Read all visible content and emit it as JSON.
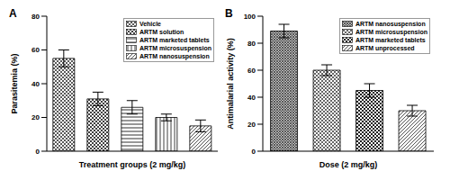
{
  "chart_data": [
    {
      "type": "bar",
      "title": "A",
      "categories": [
        "Vehicle",
        "ARTM solution",
        "ARTM marketed tablets",
        "ARTM microsuspension",
        "ARTM nanosuspension"
      ],
      "values": [
        55,
        31,
        26,
        20,
        15
      ],
      "errors": [
        5,
        4,
        4,
        2,
        3.5
      ],
      "colors": [
        "#303030",
        "#404040",
        "#303030",
        "#404040",
        "#404040"
      ],
      "x_label": "Treatment groups (2 mg/kg)",
      "y_label": "Parasitemia (%)",
      "ylim": [
        0,
        80
      ],
      "yticks": [
        0,
        20,
        40,
        60,
        80
      ],
      "legend": "upper right",
      "tick_labels": "y"
    },
    {
      "type": "bar",
      "title": "B",
      "categories": [
        "ARTM nanosuspension",
        "ARTM microsuspension",
        "ARTM marketed tablets",
        "ARTM unprocessed"
      ],
      "values": [
        89,
        60,
        45,
        30
      ],
      "errors": [
        5,
        4,
        5,
        4
      ],
      "colors": [
        "#303030",
        "#404040",
        "#202020",
        "#404040"
      ],
      "x_label": "Dose (2 mg/kg)",
      "y_label": "Antimalarial activity (%)",
      "ylim": [
        0,
        100
      ],
      "yticks": [
        0,
        20,
        40,
        60,
        80,
        100
      ],
      "legend": "upper right",
      "tick_labels": "y"
    }
  ]
}
